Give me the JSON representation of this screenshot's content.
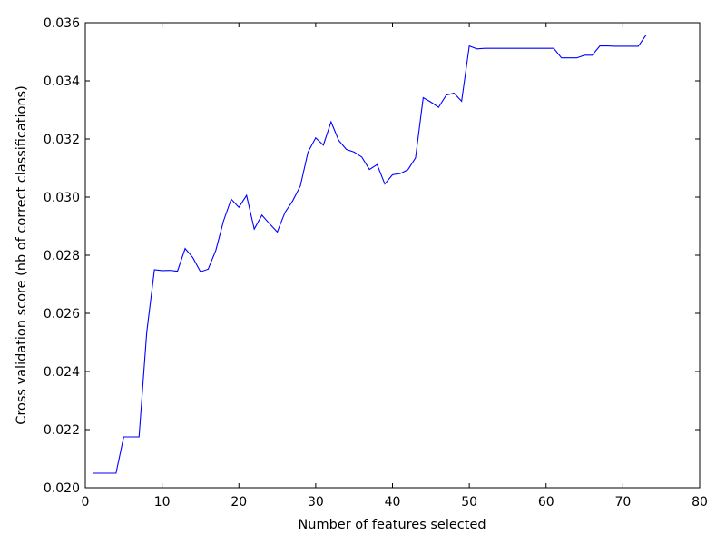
{
  "chart_data": {
    "type": "line",
    "title": "",
    "xlabel": "Number of features selected",
    "ylabel": "Cross validation score (nb of correct classifications)",
    "xlim": [
      0,
      80
    ],
    "ylim": [
      0.02,
      0.036
    ],
    "x_ticks": [
      0,
      10,
      20,
      30,
      40,
      50,
      60,
      70,
      80
    ],
    "x_tick_labels": [
      "0",
      "10",
      "20",
      "30",
      "40",
      "50",
      "60",
      "70",
      "80"
    ],
    "y_ticks": [
      0.02,
      0.022,
      0.024,
      0.026,
      0.028,
      0.03,
      0.032,
      0.034,
      0.036
    ],
    "y_tick_labels": [
      "0.020",
      "0.022",
      "0.024",
      "0.026",
      "0.028",
      "0.030",
      "0.032",
      "0.034",
      "0.036"
    ],
    "grid": false,
    "legend": "none",
    "series": [
      {
        "name": "cv_score",
        "color": "#0000ff",
        "x": [
          1,
          2,
          3,
          4,
          5,
          6,
          7,
          8,
          9,
          10,
          11,
          12,
          13,
          14,
          15,
          16,
          17,
          18,
          19,
          20,
          21,
          22,
          23,
          24,
          25,
          26,
          27,
          28,
          29,
          30,
          31,
          32,
          33,
          34,
          35,
          36,
          37,
          38,
          39,
          40,
          41,
          42,
          43,
          44,
          45,
          46,
          47,
          48,
          49,
          50,
          51,
          52,
          53,
          54,
          55,
          56,
          57,
          58,
          59,
          60,
          61,
          62,
          63,
          64,
          65,
          66,
          67,
          68,
          69,
          70,
          71,
          72,
          73
        ],
        "values": [
          0.0205,
          0.0205,
          0.0205,
          0.0205,
          0.02175,
          0.02175,
          0.02175,
          0.02535,
          0.0275,
          0.02747,
          0.02748,
          0.02745,
          0.02823,
          0.02792,
          0.02743,
          0.02752,
          0.02817,
          0.02918,
          0.02993,
          0.02965,
          0.03006,
          0.0289,
          0.02938,
          0.02908,
          0.0288,
          0.02947,
          0.02987,
          0.03038,
          0.03155,
          0.03204,
          0.03179,
          0.03259,
          0.03195,
          0.03164,
          0.03155,
          0.03138,
          0.03095,
          0.03112,
          0.03045,
          0.03077,
          0.03081,
          0.03094,
          0.03135,
          0.03342,
          0.03327,
          0.03309,
          0.03351,
          0.03358,
          0.0333,
          0.0352,
          0.0351,
          0.03512,
          0.03512,
          0.03512,
          0.03512,
          0.03512,
          0.03512,
          0.03512,
          0.03512,
          0.03512,
          0.03512,
          0.03479,
          0.03479,
          0.03479,
          0.03488,
          0.03488,
          0.0352,
          0.0352,
          0.03519,
          0.03519,
          0.03519,
          0.03519,
          0.03557
        ]
      }
    ]
  }
}
